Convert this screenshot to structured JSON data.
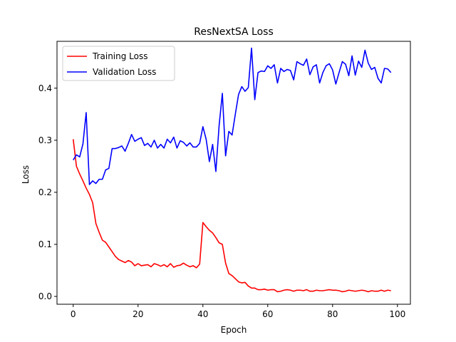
{
  "chart_data": {
    "type": "line",
    "title": "ResNextSA Loss",
    "xlabel": "Epoch",
    "ylabel": "Loss",
    "xlim": [
      -5,
      104
    ],
    "ylim": [
      -0.015,
      0.49
    ],
    "xticks": [
      0,
      20,
      40,
      60,
      80,
      100
    ],
    "yticks": [
      0.0,
      0.1,
      0.2,
      0.3,
      0.4
    ],
    "ytick_labels": [
      "0.0",
      "0.1",
      "0.2",
      "0.3",
      "0.4"
    ],
    "grid": false,
    "legend_position": "upper-left",
    "x": [
      0,
      1,
      2,
      3,
      4,
      5,
      6,
      7,
      8,
      9,
      10,
      11,
      12,
      13,
      14,
      15,
      16,
      17,
      18,
      19,
      20,
      21,
      22,
      23,
      24,
      25,
      26,
      27,
      28,
      29,
      30,
      31,
      32,
      33,
      34,
      35,
      36,
      37,
      38,
      39,
      40,
      41,
      42,
      43,
      44,
      45,
      46,
      47,
      48,
      49,
      50,
      51,
      52,
      53,
      54,
      55,
      56,
      57,
      58,
      59,
      60,
      61,
      62,
      63,
      64,
      65,
      66,
      67,
      68,
      69,
      70,
      71,
      72,
      73,
      74,
      75,
      76,
      77,
      78,
      79,
      80,
      81,
      82,
      83,
      84,
      85,
      86,
      87,
      88,
      89,
      90,
      91,
      92,
      93,
      94,
      95,
      96,
      97,
      98
    ],
    "series": [
      {
        "name": "Training Loss",
        "color": "#ff0000",
        "values": [
          0.302,
          0.25,
          0.235,
          0.222,
          0.208,
          0.196,
          0.18,
          0.14,
          0.123,
          0.108,
          0.104,
          0.095,
          0.086,
          0.077,
          0.071,
          0.068,
          0.065,
          0.069,
          0.066,
          0.059,
          0.063,
          0.059,
          0.06,
          0.061,
          0.057,
          0.063,
          0.061,
          0.058,
          0.061,
          0.057,
          0.063,
          0.056,
          0.059,
          0.06,
          0.064,
          0.06,
          0.057,
          0.059,
          0.055,
          0.062,
          0.142,
          0.134,
          0.127,
          0.122,
          0.113,
          0.103,
          0.1,
          0.064,
          0.044,
          0.04,
          0.034,
          0.028,
          0.026,
          0.027,
          0.02,
          0.016,
          0.016,
          0.013,
          0.013,
          0.014,
          0.012,
          0.013,
          0.013,
          0.009,
          0.01,
          0.012,
          0.013,
          0.012,
          0.01,
          0.012,
          0.012,
          0.011,
          0.013,
          0.01,
          0.01,
          0.012,
          0.011,
          0.011,
          0.012,
          0.013,
          0.012,
          0.012,
          0.011,
          0.009,
          0.01,
          0.012,
          0.011,
          0.01,
          0.011,
          0.012,
          0.011,
          0.009,
          0.011,
          0.01,
          0.01,
          0.012,
          0.01,
          0.012,
          0.011
        ]
      },
      {
        "name": "Validation Loss",
        "color": "#0000ff",
        "values": [
          0.262,
          0.272,
          0.268,
          0.293,
          0.353,
          0.215,
          0.222,
          0.217,
          0.225,
          0.225,
          0.243,
          0.246,
          0.284,
          0.284,
          0.286,
          0.289,
          0.279,
          0.294,
          0.311,
          0.298,
          0.302,
          0.305,
          0.29,
          0.294,
          0.287,
          0.3,
          0.285,
          0.292,
          0.285,
          0.302,
          0.295,
          0.306,
          0.285,
          0.299,
          0.296,
          0.289,
          0.295,
          0.287,
          0.287,
          0.294,
          0.326,
          0.302,
          0.259,
          0.292,
          0.24,
          0.328,
          0.39,
          0.27,
          0.317,
          0.31,
          0.35,
          0.388,
          0.403,
          0.394,
          0.401,
          0.477,
          0.378,
          0.43,
          0.433,
          0.432,
          0.443,
          0.438,
          0.445,
          0.41,
          0.438,
          0.432,
          0.436,
          0.434,
          0.416,
          0.451,
          0.447,
          0.444,
          0.456,
          0.426,
          0.441,
          0.445,
          0.41,
          0.43,
          0.443,
          0.447,
          0.435,
          0.408,
          0.43,
          0.451,
          0.446,
          0.424,
          0.462,
          0.425,
          0.452,
          0.44,
          0.473,
          0.448,
          0.436,
          0.44,
          0.419,
          0.41,
          0.438,
          0.437,
          0.43
        ]
      }
    ]
  }
}
